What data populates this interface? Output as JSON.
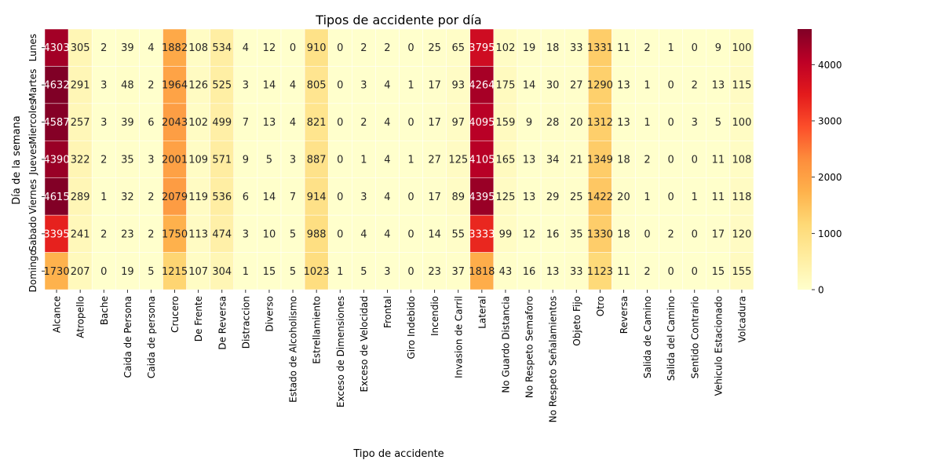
{
  "chart_data": {
    "type": "heatmap",
    "title": "Tipos de accidente por día",
    "xlabel": "Tipo de accidente",
    "ylabel": "Día de la semana",
    "columns": [
      "Alcance",
      "Atropello",
      "Bache",
      "Caida de Persona",
      "Caida de persona",
      "Crucero",
      "De Frente",
      "De Reversa",
      "Distraccion",
      "Diverso",
      "Estado de Alcoholismo",
      "Estrellamiento",
      "Exceso de Dimensiones",
      "Exceso de Velocidad",
      "Frontal",
      "Giro Indebido",
      "Incendio",
      "Invasion de Carril",
      "Lateral",
      "No Guardo Distancia",
      "No Respeto Semaforo",
      "No Respeto Señalamientos",
      "Objeto Fijo",
      "Otro",
      "Reversa",
      "Salida de Camino",
      "Salida del Camino",
      "Sentido Contrario",
      "Vehiculo Estacionado",
      "Volcadura"
    ],
    "rows": [
      "Lunes",
      "Martes",
      "Miercoles",
      "Jueves",
      "Viernes",
      "Sabado",
      "Domingo"
    ],
    "values": [
      [
        4303,
        305,
        2,
        39,
        4,
        1882,
        108,
        534,
        4,
        12,
        0,
        910,
        0,
        2,
        2,
        0,
        25,
        65,
        3795,
        102,
        19,
        18,
        33,
        1331,
        11,
        2,
        1,
        0,
        9,
        100
      ],
      [
        4632,
        291,
        3,
        48,
        2,
        1964,
        126,
        525,
        3,
        14,
        4,
        805,
        0,
        3,
        4,
        1,
        17,
        93,
        4264,
        175,
        14,
        30,
        27,
        1290,
        13,
        1,
        0,
        2,
        13,
        115
      ],
      [
        4587,
        257,
        3,
        39,
        6,
        2043,
        102,
        499,
        7,
        13,
        4,
        821,
        0,
        2,
        4,
        0,
        17,
        97,
        4095,
        159,
        9,
        28,
        20,
        1312,
        13,
        1,
        0,
        3,
        5,
        100
      ],
      [
        4390,
        322,
        2,
        35,
        3,
        2001,
        109,
        571,
        9,
        5,
        3,
        887,
        0,
        1,
        4,
        1,
        27,
        125,
        4105,
        165,
        13,
        34,
        21,
        1349,
        18,
        2,
        0,
        0,
        11,
        108
      ],
      [
        4615,
        289,
        1,
        32,
        2,
        2079,
        119,
        536,
        6,
        14,
        7,
        914,
        0,
        3,
        4,
        0,
        17,
        89,
        4395,
        125,
        13,
        29,
        25,
        1422,
        20,
        1,
        0,
        1,
        11,
        118
      ],
      [
        3395,
        241,
        2,
        23,
        2,
        1750,
        113,
        474,
        3,
        10,
        5,
        988,
        0,
        4,
        4,
        0,
        14,
        55,
        3333,
        99,
        12,
        16,
        35,
        1330,
        18,
        0,
        2,
        0,
        17,
        120
      ],
      [
        1730,
        207,
        0,
        19,
        5,
        1215,
        107,
        304,
        1,
        15,
        5,
        1023,
        1,
        5,
        3,
        0,
        23,
        37,
        1818,
        43,
        16,
        13,
        33,
        1123,
        11,
        2,
        0,
        0,
        15,
        155
      ]
    ],
    "colormap": "YlOrRd",
    "vmin": 0,
    "vmax": 4632,
    "colorbar_ticks": [
      0,
      1000,
      2000,
      3000,
      4000
    ],
    "annotations": true
  }
}
